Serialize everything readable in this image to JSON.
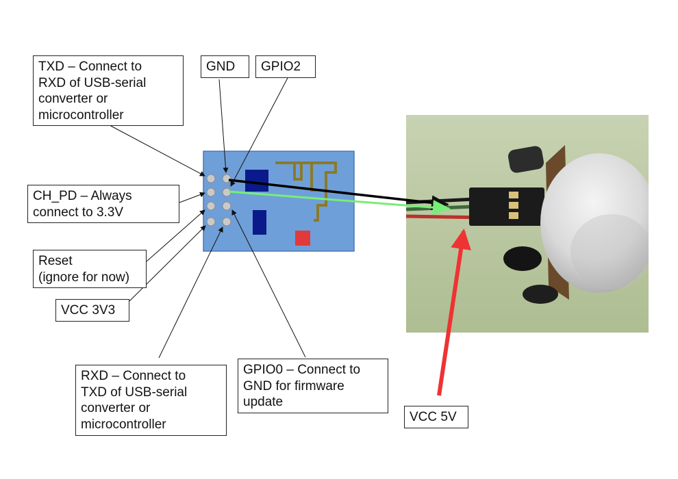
{
  "labels": {
    "txd": "TXD – Connect to\nRXD of USB-serial\nconverter or\nmicrocontroller",
    "gnd": "GND",
    "gpio2": "GPIO2",
    "ch_pd": "CH_PD – Always\nconnect to 3.3V",
    "reset": "Reset\n(ignore for now)",
    "vcc_3v3": "VCC 3V3",
    "rxd": "RXD – Connect to\nTXD of USB-serial\nconverter or\nmicrocontroller",
    "gpio0": "GPIO0 – Connect to\nGND for firmware\nupdate",
    "vcc_5v": "VCC 5V"
  },
  "colors": {
    "board": "#6f9fd8",
    "board_border": "#4a78b8",
    "pin": "#c9c9c9",
    "chip": "#0a1a8a",
    "antenna": "#8a7a2a",
    "led": "#e23a3a",
    "wire_black": "#000000",
    "wire_green": "#77ee77",
    "arrow_red": "#ee3333",
    "photo_bg": "#b8c8a0"
  }
}
